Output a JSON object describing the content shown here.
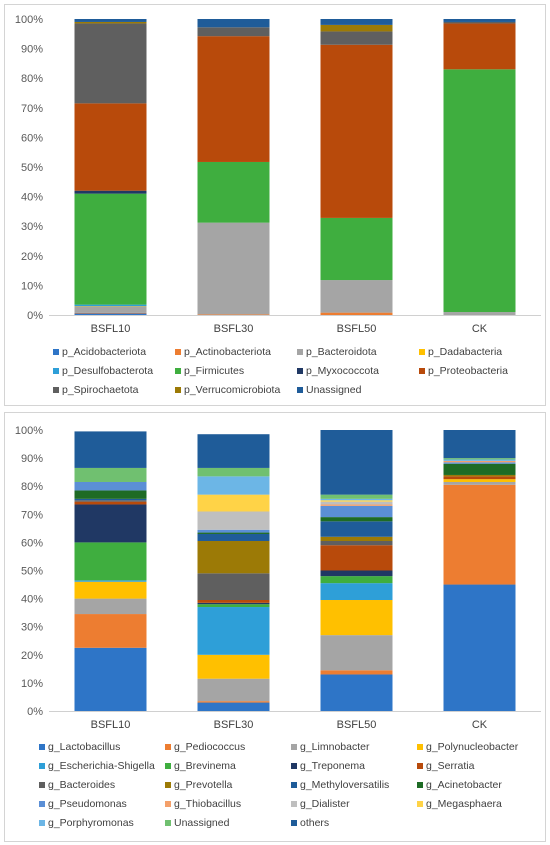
{
  "chart_data": [
    {
      "type": "bar",
      "stacked": true,
      "normalized": true,
      "ylim": [
        0,
        100
      ],
      "yticks": [
        "0%",
        "10%",
        "20%",
        "30%",
        "40%",
        "50%",
        "60%",
        "70%",
        "80%",
        "90%",
        "100%"
      ],
      "categories": [
        "BSFL10",
        "BSFL30",
        "BSFL50",
        "CK"
      ],
      "grid": false,
      "legend_position": "bottom",
      "series": [
        {
          "name": "p_Acidobacteriota",
          "color": "#2e75c7",
          "values": [
            0.5,
            0.0,
            0.0,
            0.0
          ]
        },
        {
          "name": "p_Actinobacteriota",
          "color": "#ed7d31",
          "values": [
            0.2,
            0.2,
            0.8,
            0.0
          ]
        },
        {
          "name": "p_Bacteroidota",
          "color": "#a5a5a5",
          "values": [
            2.2,
            31.0,
            11.0,
            1.0
          ]
        },
        {
          "name": "p_Dadabacteria",
          "color": "#ffc000",
          "values": [
            0.1,
            0.0,
            0.0,
            0.0
          ]
        },
        {
          "name": "p_Desulfobacterota",
          "color": "#2e9fd8",
          "values": [
            0.5,
            0.0,
            0.0,
            0.0
          ]
        },
        {
          "name": "p_Firmicutes",
          "color": "#3fae3f",
          "values": [
            37.5,
            20.5,
            21.0,
            82.0
          ]
        },
        {
          "name": "p_Myxococcota",
          "color": "#203864",
          "values": [
            1.0,
            0.0,
            0.0,
            0.0
          ]
        },
        {
          "name": "p_Proteobacteria",
          "color": "#b84a0b",
          "values": [
            29.5,
            42.5,
            58.5,
            15.5
          ]
        },
        {
          "name": "p_Spirochaetota",
          "color": "#5f5f5f",
          "values": [
            27.0,
            3.0,
            4.5,
            0.5
          ]
        },
        {
          "name": "p_Verrucomicrobiota",
          "color": "#9c7a06",
          "values": [
            0.5,
            0.0,
            2.2,
            0.0
          ]
        },
        {
          "name": "Unassigned",
          "color": "#1f5c99",
          "values": [
            1.0,
            2.8,
            2.0,
            1.0
          ]
        }
      ]
    },
    {
      "type": "bar",
      "stacked": true,
      "normalized": true,
      "ylim": [
        0,
        100
      ],
      "yticks": [
        "0%",
        "10%",
        "20%",
        "30%",
        "40%",
        "50%",
        "60%",
        "70%",
        "80%",
        "90%",
        "100%"
      ],
      "categories": [
        "BSFL10",
        "BSFL30",
        "BSFL50",
        "CK"
      ],
      "grid": false,
      "legend_position": "bottom",
      "series": [
        {
          "name": "g_Lactobacillus",
          "color": "#2e75c7",
          "values": [
            22.5,
            3.0,
            13.0,
            45.0
          ]
        },
        {
          "name": "g_Pediococcus",
          "color": "#ed7d31",
          "values": [
            12.0,
            0.5,
            1.5,
            35.5
          ]
        },
        {
          "name": "g_Limnobacter",
          "color": "#a5a5a5",
          "values": [
            5.5,
            8.0,
            12.5,
            1.0
          ]
        },
        {
          "name": "g_Polynucleobacter",
          "color": "#ffc000",
          "values": [
            6.0,
            8.5,
            12.5,
            1.0
          ]
        },
        {
          "name": "g_Escherichia-Shigella",
          "color": "#2e9fd8",
          "values": [
            0.5,
            17.0,
            6.0,
            0.0
          ]
        },
        {
          "name": "g_Brevinema",
          "color": "#3fae3f",
          "values": [
            13.5,
            1.0,
            2.5,
            0.0
          ]
        },
        {
          "name": "g_Treponema",
          "color": "#203864",
          "values": [
            13.5,
            0.5,
            2.0,
            0.0
          ]
        },
        {
          "name": "g_Serratia",
          "color": "#b84a0b",
          "values": [
            1.0,
            1.0,
            9.0,
            1.0
          ]
        },
        {
          "name": "g_Bacteroides",
          "color": "#5f5f5f",
          "values": [
            0.5,
            9.5,
            1.5,
            0.0
          ]
        },
        {
          "name": "g_Prevotella",
          "color": "#9c7a06",
          "values": [
            0.0,
            11.5,
            1.5,
            0.5
          ]
        },
        {
          "name": "g_Methyloversatilis",
          "color": "#1f5c99",
          "values": [
            0.5,
            2.5,
            5.5,
            0.0
          ]
        },
        {
          "name": "g_Acinetobacter",
          "color": "#1e6b25",
          "values": [
            3.0,
            0.5,
            1.5,
            4.0
          ]
        },
        {
          "name": "g_Pseudomonas",
          "color": "#5b8fd6",
          "values": [
            3.0,
            1.0,
            4.0,
            0.5
          ]
        },
        {
          "name": "g_Thiobacillus",
          "color": "#f4a06a",
          "values": [
            0.0,
            0.0,
            0.5,
            0.5
          ]
        },
        {
          "name": "g_Dialister",
          "color": "#bfbfbf",
          "values": [
            0.0,
            6.5,
            1.0,
            0.0
          ]
        },
        {
          "name": "g_Megasphaera",
          "color": "#ffd347",
          "values": [
            0.0,
            6.0,
            0.5,
            0.0
          ]
        },
        {
          "name": "g_Porphyromonas",
          "color": "#6cb6e6",
          "values": [
            0.0,
            6.5,
            0.5,
            0.5
          ]
        },
        {
          "name": "Unassigned",
          "color": "#70c070",
          "values": [
            5.0,
            3.0,
            1.5,
            0.5
          ]
        },
        {
          "name": "others",
          "color": "#1f5c99",
          "values": [
            13.0,
            12.0,
            23.0,
            10.0
          ]
        }
      ]
    }
  ]
}
